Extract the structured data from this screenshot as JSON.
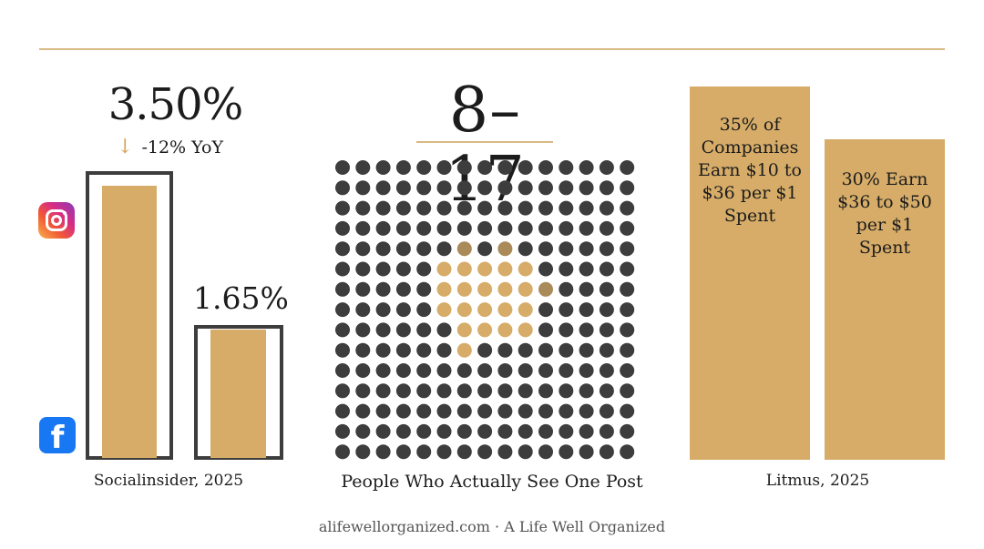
{
  "footer": "alifewellorganized.com · A Life Well Organized",
  "colors": {
    "accent": "#d6ac68",
    "dot": "#3d3d3d",
    "dot_dim": "#a98a58",
    "rule": "#d8ba84"
  },
  "icons": {
    "instagram": "instagram-icon",
    "facebook": "facebook-icon",
    "arrow": "arrow-down-icon"
  },
  "chart_data": [
    {
      "type": "bar",
      "categories": [
        "Instagram",
        "Facebook"
      ],
      "values": [
        3.5,
        1.65
      ],
      "value_labels": [
        "3.50%",
        "1.65%"
      ],
      "annotation": "-12% YoY",
      "source": "Socialinsider, 2025",
      "ylim": [
        0,
        3.7
      ]
    },
    {
      "type": "scatter",
      "headline": "8–17",
      "caption": "People Who Actually See One Post",
      "grid": {
        "rows": 15,
        "cols": 15
      },
      "highlighted": [
        [
          4,
          6
        ],
        [
          4,
          8
        ],
        [
          5,
          5
        ],
        [
          5,
          6
        ],
        [
          5,
          7
        ],
        [
          5,
          8
        ],
        [
          5,
          9
        ],
        [
          6,
          5
        ],
        [
          6,
          6
        ],
        [
          6,
          7
        ],
        [
          6,
          8
        ],
        [
          6,
          9
        ],
        [
          6,
          10
        ],
        [
          7,
          5
        ],
        [
          7,
          6
        ],
        [
          7,
          7
        ],
        [
          7,
          8
        ],
        [
          7,
          9
        ],
        [
          8,
          6
        ],
        [
          8,
          7
        ],
        [
          8,
          8
        ],
        [
          8,
          9
        ],
        [
          9,
          6
        ]
      ],
      "dim": [
        [
          4,
          6
        ],
        [
          4,
          8
        ],
        [
          6,
          10
        ]
      ]
    },
    {
      "type": "bar",
      "categories": [
        "35% of Companies Earn $10 to $36 per $1 Spent",
        "30% Earn $36 to $50 per $1 Spent"
      ],
      "values": [
        35,
        30
      ],
      "source": "Litmus, 2025",
      "ylim": [
        0,
        35.5
      ]
    }
  ]
}
